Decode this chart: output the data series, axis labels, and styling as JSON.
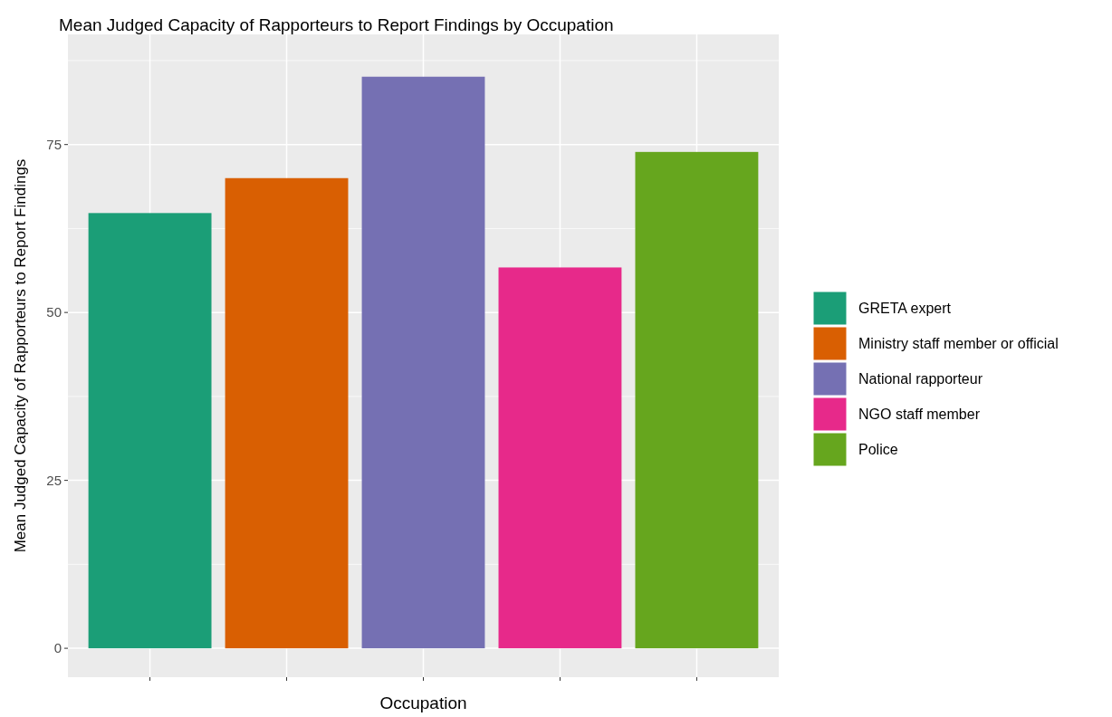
{
  "chart_data": {
    "type": "bar",
    "title": "Mean Judged Capacity of Rapporteurs to Report Findings by Occupation",
    "xlabel": "Occupation",
    "ylabel": "Mean Judged Capacity of Rapporteurs to Report Findings",
    "categories": [
      null,
      null,
      null,
      null,
      null
    ],
    "series": [
      {
        "name": "GRETA expert",
        "color": "#1b9e77",
        "values": [
          64.8,
          null,
          null,
          null,
          null
        ]
      },
      {
        "name": "Ministry staff member or official",
        "color": "#d95f02",
        "values": [
          null,
          70.0,
          null,
          null,
          null
        ]
      },
      {
        "name": "National rapporteur",
        "color": "#7570b3",
        "values": [
          null,
          null,
          85.1,
          null,
          null
        ]
      },
      {
        "name": "NGO staff member",
        "color": "#e7298a",
        "values": [
          null,
          null,
          null,
          56.7,
          null
        ]
      },
      {
        "name": "Police",
        "color": "#66a61e",
        "values": [
          null,
          null,
          null,
          null,
          73.9
        ]
      }
    ],
    "ylim": [
      -4.3,
      91.4
    ],
    "yticks": [
      0,
      25,
      50,
      75
    ],
    "grid": true,
    "legend": "right"
  }
}
